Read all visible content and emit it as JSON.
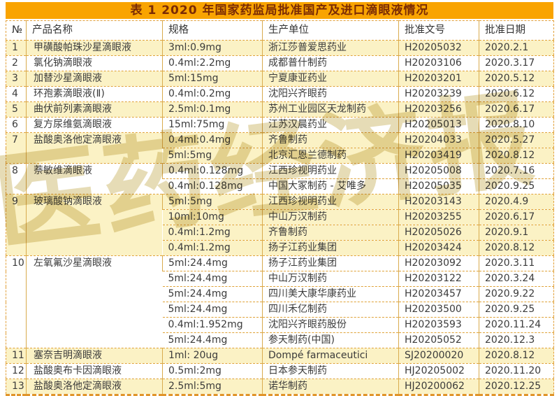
{
  "title": "表 1 2020 年国家药监局批准国产及进口滴眼液情况",
  "watermark": "医药经济报",
  "colors": {
    "title_bar_bg": "#f9a401",
    "title_text": "#7a2b05",
    "row_yellow": "#fbf2c5",
    "row_white": "#ffffff",
    "dashed_line": "#dfa237",
    "vertical_line": "#d9ab4e",
    "body_text": "#3b3b3b"
  },
  "table": {
    "headers": [
      "№",
      "产品名称",
      "规格",
      "生产单位",
      "批准文号",
      "批准日期"
    ],
    "groups": [
      {
        "no": "1",
        "product": "甲磺酸帕珠沙星滴眼液",
        "shade": "yellow",
        "entries": [
          {
            "spec": "3ml:0.9mg",
            "maker": "浙江莎普爱思药业",
            "approval": "H20205032",
            "date": "2020.2.1"
          }
        ]
      },
      {
        "no": "2",
        "product": "氯化钠滴眼液",
        "shade": "white",
        "entries": [
          {
            "spec": "0.4ml:2.2mg",
            "maker": "成都普什制药",
            "approval": "H20203106",
            "date": "2020.3.17"
          }
        ]
      },
      {
        "no": "3",
        "product": "加替沙星滴眼液",
        "shade": "yellow",
        "entries": [
          {
            "spec": "5ml:15mg",
            "maker": "宁夏康亚药业",
            "approval": "H20203201",
            "date": "2020.5.12"
          }
        ]
      },
      {
        "no": "4",
        "product": "环孢素滴眼液(Ⅱ)",
        "shade": "white",
        "entries": [
          {
            "spec": "0.4ml:0.2mg",
            "maker": "沈阳兴齐眼药",
            "approval": "H20203239",
            "date": "2020.6.12"
          }
        ]
      },
      {
        "no": "5",
        "product": "曲伏前列素滴眼液",
        "shade": "yellow",
        "entries": [
          {
            "spec": "2.5ml:0.1mg",
            "maker": "苏州工业园区天龙制药",
            "approval": "H20203256",
            "date": "2020.6.17"
          }
        ]
      },
      {
        "no": "6",
        "product": "复方尿维氨滴眼液",
        "shade": "white",
        "entries": [
          {
            "spec": "15ml:75mg",
            "maker": "江苏汉晨药业",
            "approval": "H20205013",
            "date": "2020.8.10"
          }
        ]
      },
      {
        "no": "7",
        "product": "盐酸奥洛他定滴眼液",
        "shade": "yellow",
        "entries": [
          {
            "spec": "0.4ml:0.4mg",
            "maker": "齐鲁制药",
            "approval": "H20204033",
            "date": "2020.5.27"
          },
          {
            "spec": "5ml:5mg",
            "maker": "北京汇恩兰德制药",
            "approval": "H20203419",
            "date": "2020.8.12"
          }
        ]
      },
      {
        "no": "8",
        "product": "萘敏维滴眼液",
        "shade": "white",
        "entries": [
          {
            "spec": "0.4ml:0.128mg",
            "maker": "江西珍视明药业",
            "approval": "H20205008",
            "date": "2020.7.16"
          },
          {
            "spec": "0.4ml:0.128mg",
            "maker": "中国大冢制药 - 艾唯多",
            "approval": "H20205035",
            "date": "2020.9.25"
          }
        ]
      },
      {
        "no": "9",
        "product": "玻璃酸钠滴眼液",
        "shade": "yellow",
        "entries": [
          {
            "spec": "5ml:5mg",
            "maker": "江西珍视明药业",
            "approval": "H20203143",
            "date": "2020.4.9"
          },
          {
            "spec": "10ml:10mg",
            "maker": "中山万汉制药",
            "approval": "H20203255",
            "date": "2020.6.17"
          },
          {
            "spec": "0.4ml:1.2mg",
            "maker": "齐鲁制药",
            "approval": "H20205026",
            "date": "2020.9.1"
          },
          {
            "spec": "0.4ml:1.2mg",
            "maker": "扬子江药业集团",
            "approval": "H20203424",
            "date": "2020.8.12"
          }
        ]
      },
      {
        "no": "10",
        "product": "左氧氟沙星滴眼液",
        "shade": "white",
        "entries": [
          {
            "spec": "5ml:24.4mg",
            "maker": "扬子江药业集团",
            "approval": "H20203092",
            "date": "2020.3.11"
          },
          {
            "spec": "5ml:24.4mg",
            "maker": "中山万汉制药",
            "approval": "H20203122",
            "date": "2020.3.24"
          },
          {
            "spec": "5ml:24.4mg",
            "maker": "四川美大康华康药业",
            "approval": "H20203457",
            "date": "2020.9.22"
          },
          {
            "spec": "5ml:24.4mg",
            "maker": "四川禾亿制药",
            "approval": "H20203500",
            "date": "2020.9.25"
          },
          {
            "spec": "0.4ml:1.952mg",
            "maker": "沈阳兴齐眼药股份",
            "approval": "H20203593",
            "date": "2020.11.24"
          },
          {
            "spec": "5ml:24.4mg",
            "maker": "参天制药(中国)",
            "approval": "H20205052",
            "date": "2020.12.3"
          }
        ]
      },
      {
        "no": "11",
        "product": "塞奈吉明滴眼液",
        "shade": "yellow",
        "entries": [
          {
            "spec": "1ml: 20ug",
            "maker": "Dompé farmaceutici",
            "approval": "SJ20200020",
            "date": "2020.8.12"
          }
        ]
      },
      {
        "no": "12",
        "product": "盐酸奥布卡因滴眼液",
        "shade": "white",
        "entries": [
          {
            "spec": "0.5ml:2mg",
            "maker": "日本参天制药",
            "approval": "HJ20205002",
            "date": "2020.11.20"
          }
        ]
      },
      {
        "no": "13",
        "product": "盐酸奥洛他定滴眼液",
        "shade": "yellow",
        "entries": [
          {
            "spec": "2.5ml:5mg",
            "maker": "诺华制药",
            "approval": "HJ20200062",
            "date": "2020.12.25"
          }
        ]
      }
    ]
  }
}
